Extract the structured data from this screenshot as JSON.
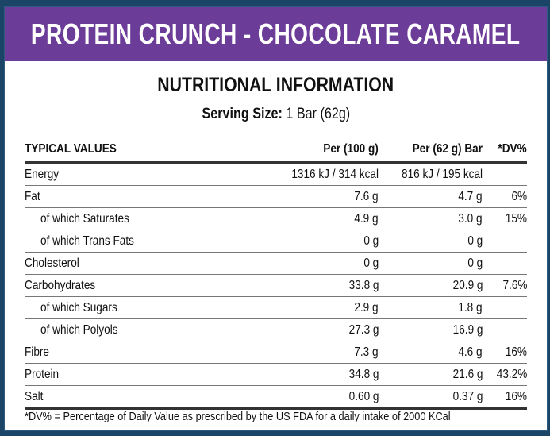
{
  "title": "PROTEIN CRUNCH - CHOCOLATE CARAMEL",
  "heading": "NUTRITIONAL INFORMATION",
  "serving": {
    "label": "Serving Size:",
    "value": "1 Bar (62g)"
  },
  "table": {
    "headers": [
      "TYPICAL VALUES",
      "Per (100 g)",
      "Per (62 g) Bar",
      "*DV%"
    ],
    "rows": [
      {
        "name": "Energy",
        "per100": "1316 kJ / 314 kcal",
        "perBar": "816 kJ / 195 kcal",
        "dv": ""
      },
      {
        "name": "Fat",
        "per100": "7.6 g",
        "perBar": "4.7 g",
        "dv": "6%"
      },
      {
        "name": "of which Saturates",
        "per100": "4.9 g",
        "perBar": "3.0 g",
        "dv": "15%"
      },
      {
        "name": "of which Trans Fats",
        "per100": "0 g",
        "perBar": "0 g",
        "dv": ""
      },
      {
        "name": "Cholesterol",
        "per100": "0 g",
        "perBar": "0 g",
        "dv": ""
      },
      {
        "name": "Carbohydrates",
        "per100": "33.8 g",
        "perBar": "20.9 g",
        "dv": "7.6%"
      },
      {
        "name": "of which Sugars",
        "per100": "2.9 g",
        "perBar": "1.8 g",
        "dv": ""
      },
      {
        "name": "of which Polyols",
        "per100": "27.3 g",
        "perBar": "16.9 g",
        "dv": ""
      },
      {
        "name": "Fibre",
        "per100": "7.3 g",
        "perBar": "4.6 g",
        "dv": "16%"
      },
      {
        "name": "Protein",
        "per100": "34.8 g",
        "perBar": "21.6 g",
        "dv": "43.2%"
      },
      {
        "name": "Salt",
        "per100": "0.60 g",
        "perBar": "0.37 g",
        "dv": "16%"
      }
    ]
  },
  "footnote": "*DV% = Percentage of Daily Value as prescribed by the US FDA for a daily intake of 2000 KCal",
  "colors": {
    "banner": "#6c3d98",
    "frame": "#1b4566"
  }
}
